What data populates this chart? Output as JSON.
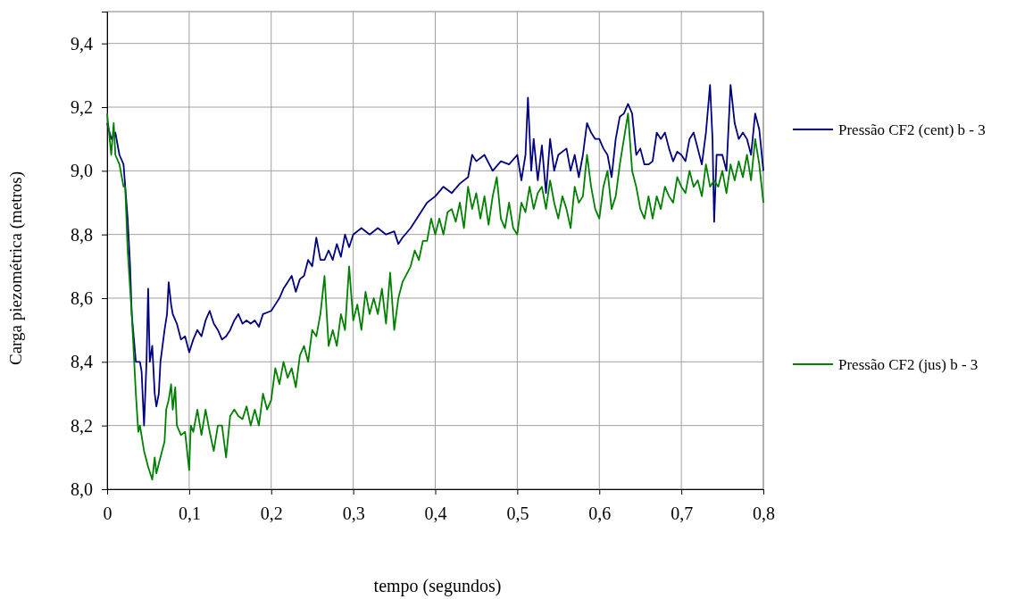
{
  "chart_data": {
    "type": "line",
    "xlabel": "tempo (segundos)",
    "ylabel": "Carga piezométrica (metros)",
    "xlim": [
      0,
      0.8
    ],
    "xticks": [
      0,
      {
        "value": 0.1,
        "label": "0,1"
      },
      {
        "value": 0.2,
        "label": "0,2"
      },
      {
        "value": 0.3,
        "label": "0,3"
      },
      {
        "value": 0.4,
        "label": "0,4"
      },
      {
        "value": 0.5,
        "label": "0,5"
      },
      {
        "value": 0.6,
        "label": "0,6"
      },
      {
        "value": 0.7,
        "label": "0,7"
      },
      {
        "value": 0.8,
        "label": "0,8"
      }
    ],
    "ylim": [
      8,
      9.5
    ],
    "yticks": [
      {
        "value": 8,
        "label": "8,0"
      },
      {
        "value": 8.2,
        "label": "8,2"
      },
      {
        "value": 8.4,
        "label": "8,4"
      },
      {
        "value": 8.6,
        "label": "8,6"
      },
      {
        "value": 8.8,
        "label": "8,8"
      },
      {
        "value": 9,
        "label": "9,0"
      },
      {
        "value": 9.2,
        "label": "9,2"
      },
      {
        "value": 9.4,
        "label": "9,4"
      }
    ],
    "grid": true,
    "legend": "right",
    "line_style": "solid",
    "series": [
      {
        "name": "Pressão CF2 (cent) b - 3",
        "color": "#000080",
        "x": [
          0,
          0.005,
          0.01,
          0.015,
          0.02,
          0.025,
          0.028,
          0.03,
          0.035,
          0.04,
          0.042,
          0.045,
          0.048,
          0.05,
          0.052,
          0.055,
          0.058,
          0.06,
          0.063,
          0.065,
          0.07,
          0.073,
          0.075,
          0.078,
          0.08,
          0.085,
          0.09,
          0.095,
          0.1,
          0.105,
          0.11,
          0.115,
          0.12,
          0.125,
          0.13,
          0.135,
          0.14,
          0.145,
          0.15,
          0.155,
          0.16,
          0.165,
          0.17,
          0.175,
          0.18,
          0.185,
          0.19,
          0.2,
          0.205,
          0.21,
          0.215,
          0.22,
          0.225,
          0.23,
          0.235,
          0.24,
          0.245,
          0.25,
          0.255,
          0.26,
          0.265,
          0.27,
          0.275,
          0.28,
          0.285,
          0.29,
          0.295,
          0.3,
          0.31,
          0.32,
          0.33,
          0.34,
          0.35,
          0.355,
          0.36,
          0.37,
          0.38,
          0.39,
          0.4,
          0.41,
          0.42,
          0.43,
          0.44,
          0.445,
          0.45,
          0.46,
          0.47,
          0.48,
          0.49,
          0.5,
          0.505,
          0.51,
          0.513,
          0.517,
          0.52,
          0.525,
          0.53,
          0.535,
          0.54,
          0.545,
          0.55,
          0.56,
          0.565,
          0.57,
          0.575,
          0.58,
          0.585,
          0.59,
          0.595,
          0.6,
          0.605,
          0.61,
          0.615,
          0.62,
          0.625,
          0.63,
          0.635,
          0.64,
          0.645,
          0.65,
          0.655,
          0.66,
          0.665,
          0.67,
          0.675,
          0.68,
          0.685,
          0.69,
          0.695,
          0.7,
          0.705,
          0.71,
          0.715,
          0.72,
          0.725,
          0.73,
          0.735,
          0.738,
          0.74,
          0.743,
          0.75,
          0.755,
          0.76,
          0.765,
          0.77,
          0.775,
          0.78,
          0.785,
          0.79,
          0.795,
          0.8
        ],
        "values": [
          9.15,
          9.1,
          9.12,
          9.05,
          9.02,
          8.85,
          8.7,
          8.55,
          8.4,
          8.4,
          8.37,
          8.2,
          8.4,
          8.63,
          8.4,
          8.45,
          8.3,
          8.26,
          8.3,
          8.4,
          8.5,
          8.55,
          8.65,
          8.58,
          8.55,
          8.52,
          8.47,
          8.48,
          8.43,
          8.47,
          8.5,
          8.48,
          8.53,
          8.56,
          8.52,
          8.5,
          8.47,
          8.48,
          8.5,
          8.53,
          8.55,
          8.52,
          8.53,
          8.52,
          8.53,
          8.51,
          8.55,
          8.56,
          8.58,
          8.6,
          8.63,
          8.65,
          8.67,
          8.62,
          8.66,
          8.67,
          8.72,
          8.7,
          8.79,
          8.72,
          8.72,
          8.75,
          8.72,
          8.77,
          8.73,
          8.8,
          8.76,
          8.8,
          8.82,
          8.8,
          8.82,
          8.8,
          8.81,
          8.77,
          8.79,
          8.82,
          8.86,
          8.9,
          8.92,
          8.95,
          8.93,
          8.96,
          8.98,
          9.05,
          9.03,
          9.05,
          9.0,
          9.03,
          9.02,
          9.05,
          8.97,
          9.05,
          9.23,
          9.0,
          9.1,
          8.97,
          9.08,
          8.93,
          9.1,
          9.0,
          9.05,
          9.07,
          9.0,
          9.05,
          8.98,
          9.05,
          9.15,
          9.12,
          9.1,
          9.1,
          9.07,
          9.05,
          8.98,
          9.1,
          9.17,
          9.18,
          9.21,
          9.18,
          9.05,
          9.07,
          9.02,
          9.02,
          9.03,
          9.12,
          9.1,
          9.12,
          9.07,
          9.03,
          9.06,
          9.05,
          9.03,
          9.1,
          9.12,
          9.07,
          9.02,
          9.12,
          9.27,
          9.1,
          8.84,
          9.05,
          9.05,
          9.0,
          9.27,
          9.15,
          9.1,
          9.12,
          9.1,
          9.05,
          9.18,
          9.13,
          9.0
        ]
      },
      {
        "name": "Pressão CF2 (jus) b - 3",
        "color": "#008000",
        "x": [
          0,
          0.005,
          0.008,
          0.01,
          0.015,
          0.02,
          0.022,
          0.025,
          0.03,
          0.033,
          0.035,
          0.038,
          0.04,
          0.045,
          0.05,
          0.055,
          0.058,
          0.06,
          0.065,
          0.07,
          0.072,
          0.075,
          0.078,
          0.08,
          0.083,
          0.085,
          0.09,
          0.095,
          0.1,
          0.102,
          0.105,
          0.11,
          0.115,
          0.12,
          0.125,
          0.13,
          0.135,
          0.14,
          0.145,
          0.15,
          0.155,
          0.16,
          0.165,
          0.17,
          0.175,
          0.18,
          0.185,
          0.19,
          0.195,
          0.2,
          0.205,
          0.21,
          0.215,
          0.22,
          0.225,
          0.23,
          0.235,
          0.24,
          0.245,
          0.25,
          0.255,
          0.26,
          0.265,
          0.27,
          0.275,
          0.28,
          0.285,
          0.29,
          0.295,
          0.3,
          0.305,
          0.31,
          0.315,
          0.32,
          0.325,
          0.33,
          0.335,
          0.34,
          0.345,
          0.35,
          0.355,
          0.36,
          0.37,
          0.375,
          0.38,
          0.385,
          0.39,
          0.395,
          0.4,
          0.405,
          0.41,
          0.415,
          0.42,
          0.425,
          0.43,
          0.435,
          0.44,
          0.445,
          0.45,
          0.455,
          0.46,
          0.465,
          0.47,
          0.475,
          0.48,
          0.485,
          0.49,
          0.495,
          0.5,
          0.505,
          0.51,
          0.515,
          0.52,
          0.525,
          0.53,
          0.535,
          0.54,
          0.545,
          0.55,
          0.555,
          0.56,
          0.565,
          0.57,
          0.575,
          0.58,
          0.585,
          0.59,
          0.595,
          0.6,
          0.605,
          0.61,
          0.615,
          0.62,
          0.625,
          0.63,
          0.635,
          0.64,
          0.645,
          0.65,
          0.655,
          0.66,
          0.665,
          0.67,
          0.675,
          0.68,
          0.685,
          0.69,
          0.695,
          0.7,
          0.705,
          0.71,
          0.715,
          0.72,
          0.725,
          0.73,
          0.735,
          0.74,
          0.745,
          0.75,
          0.755,
          0.76,
          0.765,
          0.77,
          0.775,
          0.78,
          0.785,
          0.79,
          0.795,
          0.8
        ],
        "values": [
          9.18,
          9.05,
          9.15,
          9.05,
          9.02,
          8.95,
          8.95,
          8.75,
          8.55,
          8.4,
          8.3,
          8.18,
          8.2,
          8.12,
          8.07,
          8.03,
          8.1,
          8.05,
          8.1,
          8.15,
          8.25,
          8.28,
          8.33,
          8.25,
          8.32,
          8.2,
          8.17,
          8.18,
          8.06,
          8.2,
          8.18,
          8.25,
          8.17,
          8.25,
          8.18,
          8.12,
          8.2,
          8.2,
          8.1,
          8.23,
          8.25,
          8.23,
          8.22,
          8.26,
          8.2,
          8.25,
          8.2,
          8.3,
          8.25,
          8.28,
          8.38,
          8.33,
          8.4,
          8.35,
          8.38,
          8.32,
          8.42,
          8.45,
          8.4,
          8.5,
          8.48,
          8.55,
          8.67,
          8.45,
          8.5,
          8.45,
          8.55,
          8.5,
          8.7,
          8.53,
          8.58,
          8.5,
          8.62,
          8.55,
          8.6,
          8.55,
          8.63,
          8.52,
          8.68,
          8.5,
          8.6,
          8.65,
          8.7,
          8.75,
          8.72,
          8.78,
          8.78,
          8.85,
          8.8,
          8.85,
          8.8,
          8.87,
          8.88,
          8.84,
          8.9,
          8.82,
          8.95,
          8.88,
          8.93,
          8.85,
          8.92,
          8.83,
          8.92,
          8.98,
          8.85,
          8.82,
          8.9,
          8.82,
          8.8,
          8.9,
          8.87,
          8.95,
          8.88,
          8.93,
          8.95,
          8.88,
          8.97,
          8.9,
          8.85,
          8.92,
          8.88,
          8.82,
          8.95,
          8.9,
          8.92,
          9.05,
          8.95,
          8.88,
          8.85,
          8.95,
          9.0,
          8.88,
          8.92,
          9.02,
          9.1,
          9.18,
          9.0,
          8.95,
          8.88,
          8.85,
          8.92,
          8.85,
          8.92,
          8.88,
          8.95,
          8.92,
          8.9,
          8.98,
          8.95,
          8.93,
          9.0,
          8.95,
          8.97,
          8.92,
          9.02,
          8.95,
          8.97,
          8.95,
          9.0,
          8.93,
          9.02,
          8.97,
          9.03,
          8.98,
          9.05,
          8.97,
          9.1,
          9.02,
          8.9
        ]
      }
    ]
  }
}
